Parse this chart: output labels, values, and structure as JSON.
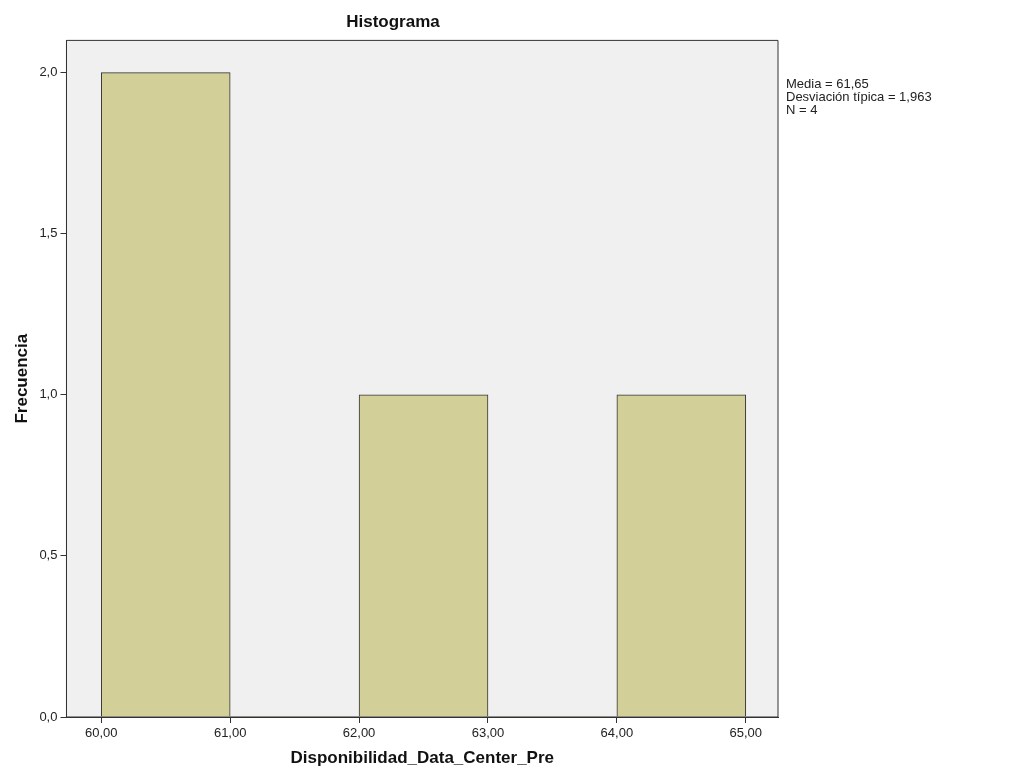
{
  "chart_data": {
    "type": "histogram",
    "title": "Histograma",
    "xlabel": "Disponibilidad_Data_Center_Pre",
    "ylabel": "Frecuencia",
    "bins": [
      60,
      61,
      62,
      63,
      64,
      65
    ],
    "values": [
      2,
      0,
      1,
      0,
      1
    ],
    "color": "#d3cf98",
    "xlim": [
      59.73,
      65.25
    ],
    "xticks": [
      {
        "value": 60,
        "label": "60,00"
      },
      {
        "value": 61,
        "label": "61,00"
      },
      {
        "value": 62,
        "label": "62,00"
      },
      {
        "value": 63,
        "label": "63,00"
      },
      {
        "value": 64,
        "label": "64,00"
      },
      {
        "value": 65,
        "label": "65,00"
      }
    ],
    "ylim": [
      0,
      2.1
    ],
    "yticks": [
      {
        "value": 0,
        "label": "0,0"
      },
      {
        "value": 0.5,
        "label": "0,5"
      },
      {
        "value": 1,
        "label": "1,0"
      },
      {
        "value": 1.5,
        "label": "1,5"
      },
      {
        "value": 2,
        "label": "2,0"
      }
    ],
    "grid": false,
    "legend": false,
    "annotations": [
      "Media = 61,65",
      "Desviación típica = 1,963",
      "N = 4"
    ]
  }
}
